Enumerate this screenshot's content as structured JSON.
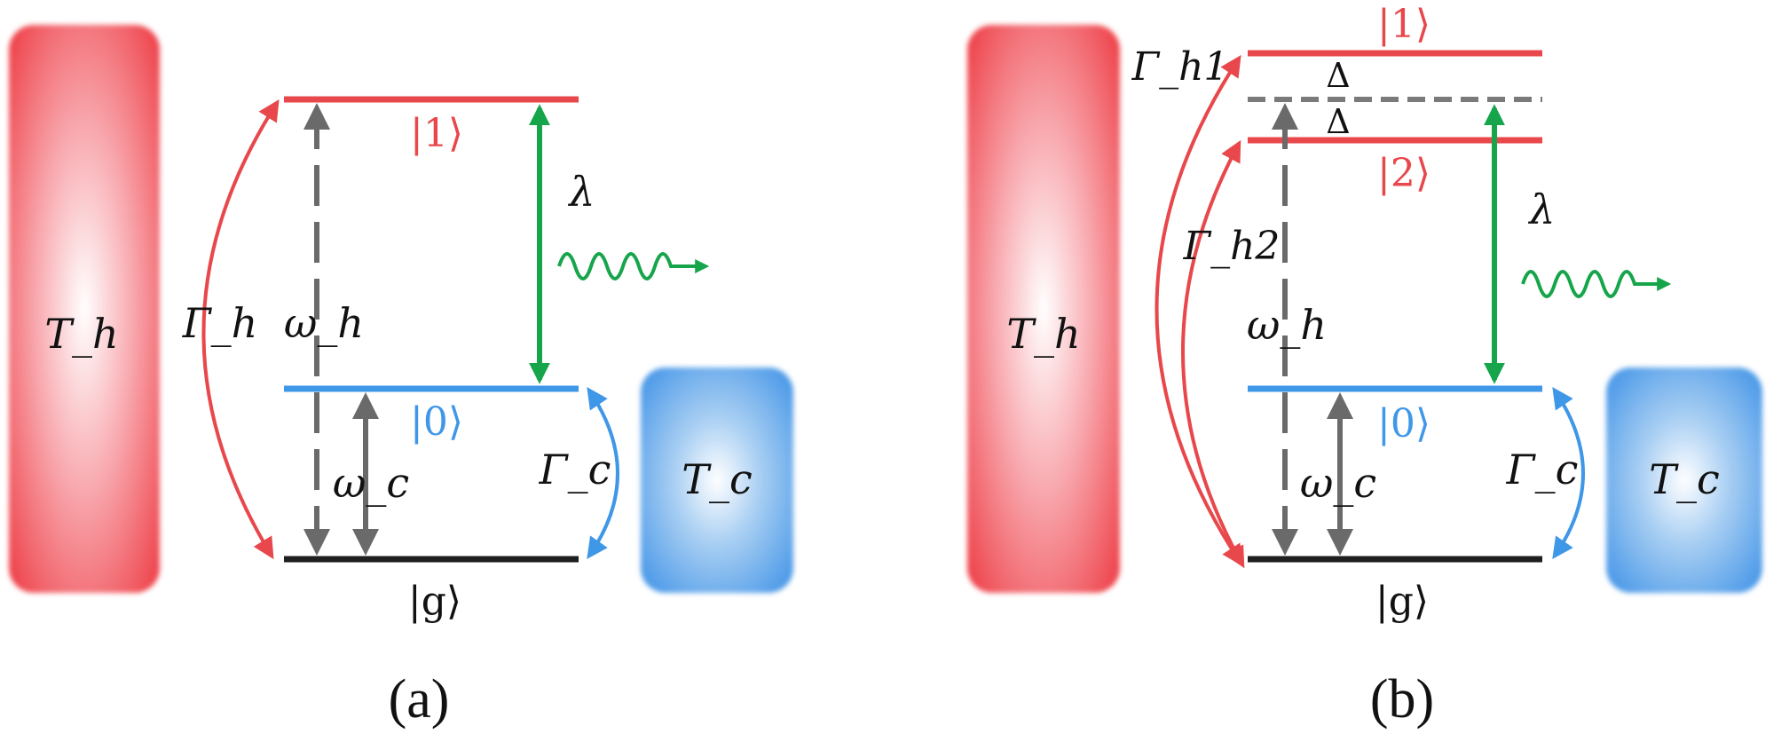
{
  "colors": {
    "hot": "#e8474b",
    "cold": "#3f97e8",
    "ground": "#1f1f1f",
    "gray": "#6a6a6a",
    "green": "#16a54a",
    "dashed_level": "#7a7a7a"
  },
  "panel_a": {
    "caption": "(a)",
    "hot_bath_label": "T_h",
    "cold_bath_label": "T_c",
    "level_1": "|1⟩",
    "level_0": "|0⟩",
    "level_g": "|g⟩",
    "gamma_h": "Γ_h",
    "gamma_c": "Γ_c",
    "omega_h": "ω_h",
    "omega_c": "ω_c",
    "lambda": "λ"
  },
  "panel_b": {
    "caption": "(b)",
    "hot_bath_label": "T_h",
    "cold_bath_label": "T_c",
    "level_1": "|1⟩",
    "level_2": "|2⟩",
    "level_0": "|0⟩",
    "level_g": "|g⟩",
    "delta_top": "Δ",
    "delta_bottom": "Δ",
    "gamma_h1": "Γ_h1",
    "gamma_h2": "Γ_h2",
    "gamma_c": "Γ_c",
    "omega_h": "ω_h",
    "omega_c": "ω_c",
    "lambda": "λ"
  }
}
